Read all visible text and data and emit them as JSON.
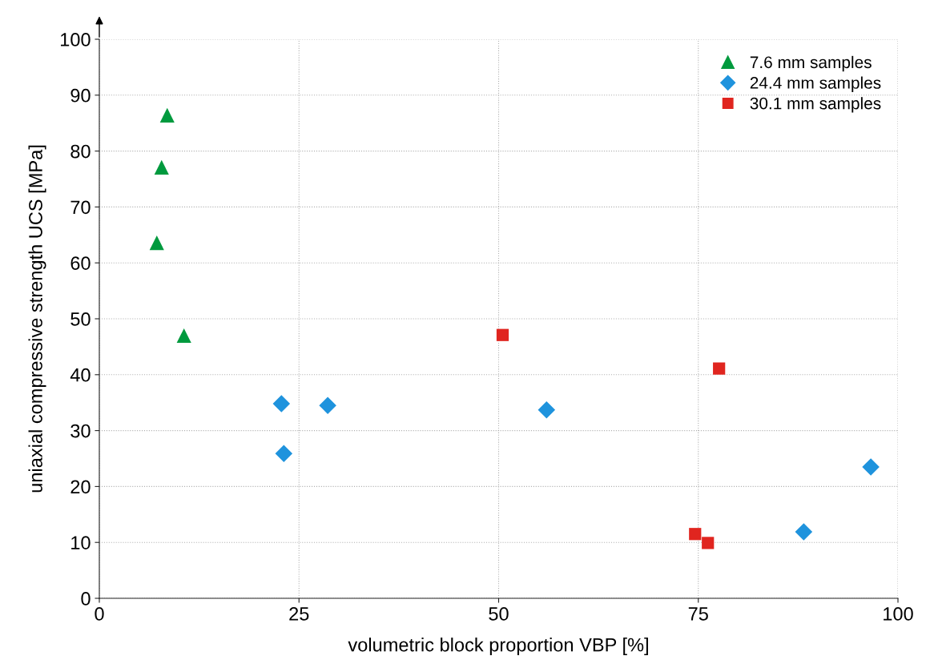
{
  "chart_data": {
    "type": "scatter",
    "xlabel": "volumetric block proportion VBP [%]",
    "ylabel": "uniaxial compressive strength UCS [MPa]",
    "xlim": [
      0,
      100
    ],
    "ylim": [
      0,
      100
    ],
    "xticks": [
      0,
      25,
      50,
      75,
      100
    ],
    "yticks": [
      0,
      10,
      20,
      30,
      40,
      50,
      60,
      70,
      80,
      90,
      100
    ],
    "grid": true,
    "legend": "top right",
    "series": [
      {
        "name": "7.6 mm samples",
        "color": "#009a3e",
        "marker": "triangle",
        "x": [
          7.2,
          7.8,
          8.5,
          10.6
        ],
        "values": [
          63.6,
          77.1,
          86.4,
          47.0
        ]
      },
      {
        "name": "24.4 mm samples",
        "color": "#1f93dd",
        "marker": "diamond",
        "x": [
          22.8,
          23.1,
          28.6,
          56.0,
          88.2,
          96.6
        ],
        "values": [
          34.8,
          25.9,
          34.5,
          33.7,
          11.9,
          23.5
        ]
      },
      {
        "name": "30.1 mm samples",
        "color": "#e0251f",
        "marker": "square",
        "x": [
          50.5,
          77.6,
          74.6,
          76.2
        ],
        "values": [
          47.1,
          41.1,
          11.5,
          9.9
        ]
      }
    ]
  }
}
